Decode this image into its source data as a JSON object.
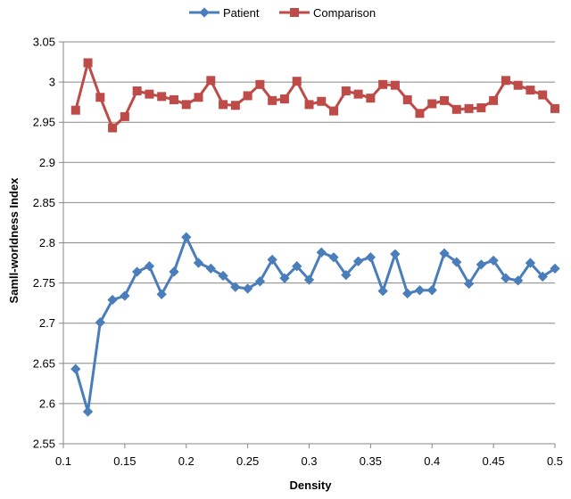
{
  "chart_data": {
    "type": "line",
    "xlabel": "Density",
    "ylabel": "Samll-worldness Index",
    "xlim": [
      0.1,
      0.5
    ],
    "ylim": [
      2.55,
      3.05
    ],
    "x_ticks": [
      "0.1",
      "0.15",
      "0.2",
      "0.25",
      "0.3",
      "0.35",
      "0.4",
      "0.45",
      "0.5"
    ],
    "y_ticks": [
      "2.55",
      "2.6",
      "2.65",
      "2.7",
      "2.75",
      "2.8",
      "2.85",
      "2.9",
      "2.95",
      "3",
      "3.05"
    ],
    "grid": "horizontal",
    "legend_position": "top",
    "x": [
      0.11,
      0.12,
      0.13,
      0.14,
      0.15,
      0.16,
      0.17,
      0.18,
      0.19,
      0.2,
      0.21,
      0.22,
      0.23,
      0.24,
      0.25,
      0.26,
      0.27,
      0.28,
      0.29,
      0.3,
      0.31,
      0.32,
      0.33,
      0.34,
      0.35,
      0.36,
      0.37,
      0.38,
      0.39,
      0.4,
      0.41,
      0.42,
      0.43,
      0.44,
      0.45,
      0.46,
      0.47,
      0.48,
      0.49,
      0.5
    ],
    "series": [
      {
        "name": "Patient",
        "color": "#4a7ebb",
        "marker": "diamond",
        "values": [
          2.643,
          2.59,
          2.701,
          2.729,
          2.734,
          2.764,
          2.771,
          2.736,
          2.764,
          2.807,
          2.775,
          2.768,
          2.759,
          2.745,
          2.743,
          2.752,
          2.779,
          2.756,
          2.771,
          2.754,
          2.788,
          2.782,
          2.76,
          2.777,
          2.782,
          2.74,
          2.786,
          2.737,
          2.741,
          2.741,
          2.787,
          2.776,
          2.749,
          2.773,
          2.778,
          2.756,
          2.753,
          2.775,
          2.758,
          2.768
        ]
      },
      {
        "name": "Comparison",
        "color": "#be4b48",
        "marker": "square",
        "values": [
          2.965,
          3.024,
          2.981,
          2.943,
          2.957,
          2.989,
          2.985,
          2.982,
          2.978,
          2.972,
          2.981,
          3.002,
          2.972,
          2.971,
          2.983,
          2.997,
          2.977,
          2.979,
          3.001,
          2.972,
          2.976,
          2.964,
          2.989,
          2.985,
          2.98,
          2.997,
          2.996,
          2.978,
          2.961,
          2.973,
          2.977,
          2.966,
          2.967,
          2.968,
          2.977,
          3.002,
          2.996,
          2.99,
          2.984,
          2.967
        ]
      }
    ]
  }
}
